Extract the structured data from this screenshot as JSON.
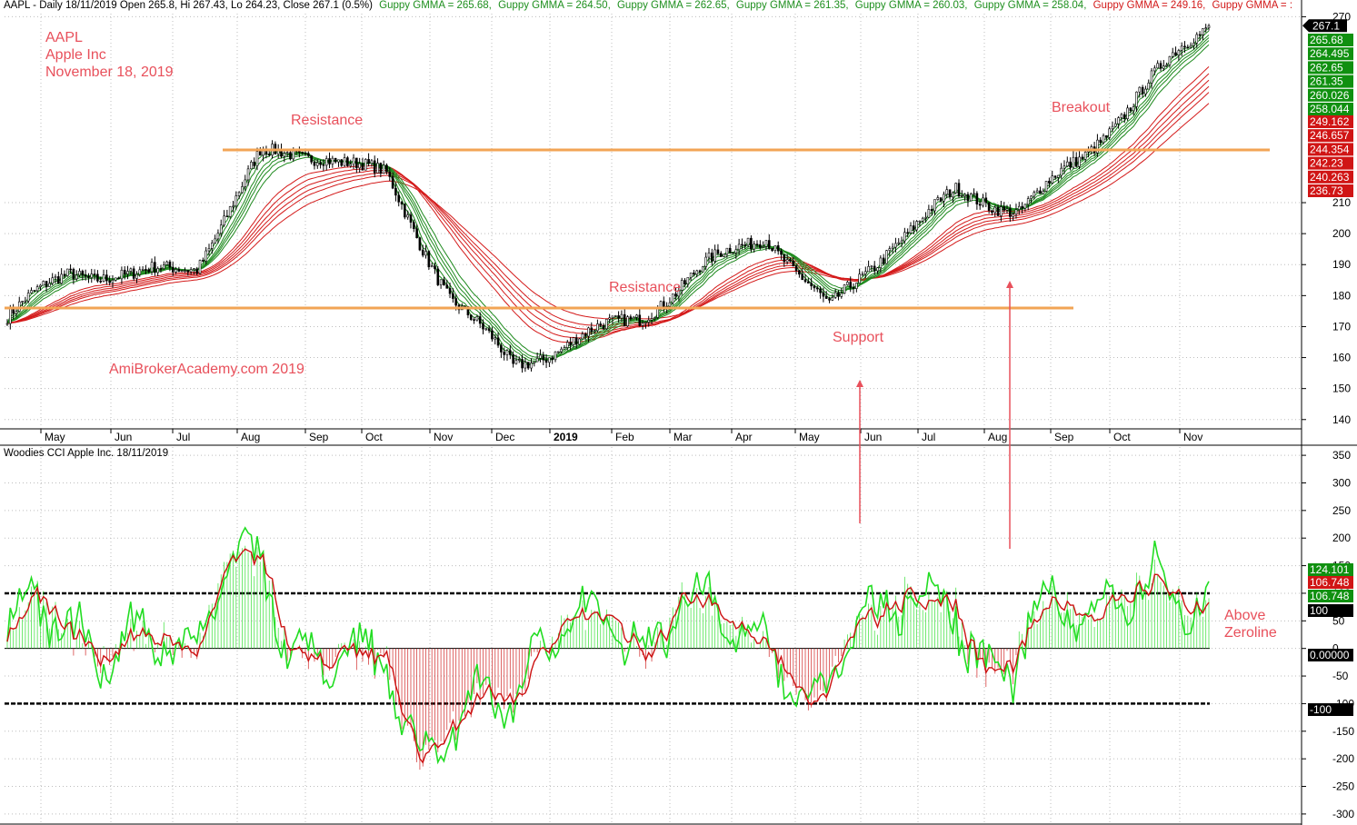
{
  "header": {
    "symbol_info": "AAPL - Daily 18/11/2019 Open 265.8, Hi 267.43, Lo 264.23, Close 267.1 (0.5%)",
    "gmma_labels": [
      "Guppy GMMA = 265.68,",
      "Guppy GMMA = 264.50,",
      "Guppy GMMA = 262.65,",
      "Guppy GMMA = 261.35,",
      "Guppy GMMA = 260.03,",
      "Guppy GMMA = 258.04,",
      "Guppy GMMA = 249.16,",
      "Guppy GMMA = :"
    ],
    "gmma_label_colors": [
      "#1e8f1e",
      "#1e8f1e",
      "#1e8f1e",
      "#1e8f1e",
      "#1e8f1e",
      "#1e8f1e",
      "#d21919",
      "#d21919"
    ]
  },
  "annotations": {
    "title_lines": [
      "AAPL",
      "Apple Inc",
      "November 18, 2019"
    ],
    "watermark": "AmiBrokerAcademy.com   2019",
    "resistance_1": "Resistance",
    "resistance_2": "Resistance",
    "support": "Support",
    "breakout": "Breakout",
    "above_zeroline": [
      "Above",
      "Zeroline"
    ]
  },
  "indicator": {
    "title": "Woodies CCI  Apple Inc. 18/11/2019"
  },
  "colors": {
    "up_bar": "#000000",
    "short_ema": "#1e8a1e",
    "long_ema": "#d41a1a",
    "level_line": "#f2a455",
    "annotation": "#e8505b",
    "cci_green": "#22dd22",
    "cci_red": "#cc1111",
    "grid": "#bdbdbd",
    "label_green_bg": "#109010",
    "label_red_bg": "#d01515"
  },
  "chart_data": [
    {
      "type": "candlestick",
      "title": "AAPL - Daily 18/11/2019",
      "x_month_labels": [
        "May",
        "Jun",
        "Jul",
        "Aug",
        "Sep",
        "Oct",
        "Nov",
        "Dec",
        "2019",
        "Feb",
        "Mar",
        "Apr",
        "May",
        "Jun",
        "Jul",
        "Aug",
        "Sep",
        "Oct",
        "Nov"
      ],
      "y_ticks": [
        140,
        150,
        160,
        170,
        180,
        190,
        200,
        210,
        270
      ],
      "ylim": [
        137,
        271
      ],
      "grid": true,
      "last_close": 267.1,
      "close_series_approx": [
        {
          "month": "Apr 2018",
          "close": 173
        },
        {
          "month": "May 2018",
          "close": 188
        },
        {
          "month": "Jun 2018",
          "close": 186
        },
        {
          "month": "Jul 2018",
          "close": 190
        },
        {
          "month": "Aug 2018",
          "close": 225
        },
        {
          "month": "Sep 2018",
          "close": 226
        },
        {
          "month": "Oct 2018",
          "close": 218
        },
        {
          "month": "Nov 2018",
          "close": 180
        },
        {
          "month": "Dec 2018",
          "close": 157
        },
        {
          "month": "Jan 2019",
          "close": 166
        },
        {
          "month": "Feb 2019",
          "close": 173
        },
        {
          "month": "Mar 2019",
          "close": 189
        },
        {
          "month": "Apr 2019",
          "close": 200
        },
        {
          "month": "May 2019",
          "close": 175
        },
        {
          "month": "Jun 2019",
          "close": 197
        },
        {
          "month": "Jul 2019",
          "close": 213
        },
        {
          "month": "Aug 2019",
          "close": 208
        },
        {
          "month": "Sep 2019",
          "close": 224
        },
        {
          "month": "Oct 2019",
          "close": 248
        },
        {
          "month": "Nov 2019",
          "close": 267.1
        }
      ],
      "resistance_levels": [
        227,
        176
      ],
      "right_labels_green": [
        "265.68",
        "264.495",
        "262.65",
        "261.35",
        "260.026",
        "258.044"
      ],
      "right_labels_red": [
        "249.162",
        "246.657",
        "244.354",
        "242.23",
        "240.263",
        "236.73"
      ],
      "last_label": "267.1"
    },
    {
      "type": "line",
      "title": "Woodies CCI  Apple Inc. 18/11/2019",
      "y_ticks": [
        350,
        300,
        250,
        200,
        150,
        100,
        50,
        0,
        -50,
        -100,
        -150,
        -200,
        -250,
        -300
      ],
      "ylim": [
        -315,
        365
      ],
      "levels": [
        100,
        0,
        -100
      ],
      "right_labels": [
        {
          "text": "124.101",
          "bg": "#109010"
        },
        {
          "text": "106.748",
          "bg": "#d01515"
        },
        {
          "text": "106.748",
          "bg": "#109010"
        },
        {
          "text": "100",
          "bg": "#000000"
        },
        {
          "text": "0.00000",
          "bg": "#000000"
        },
        {
          "text": "-100",
          "bg": "#000000"
        }
      ]
    }
  ]
}
